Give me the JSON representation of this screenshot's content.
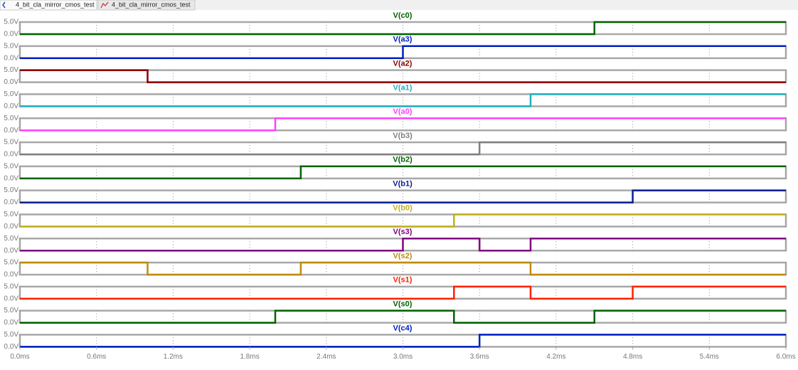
{
  "tabs": [
    "4_bit_cla_mirror_cmos_test",
    "4_bit_cla_mirror_cmos_test"
  ],
  "chart_data": [
    {
      "type": "line",
      "title": "V(c0)",
      "color": "#006400",
      "x": [
        0,
        4.5,
        4.5,
        6
      ],
      "values": [
        0,
        0,
        5,
        5
      ],
      "xlim": [
        0,
        6
      ],
      "ylim": [
        0,
        5
      ],
      "yticks": [
        {
          "value": 5,
          "label": "5.0V"
        },
        {
          "value": 0,
          "label": "0.0V"
        }
      ]
    },
    {
      "type": "line",
      "title": "V(a3)",
      "color": "#0020c0",
      "x": [
        0,
        3,
        3,
        6
      ],
      "values": [
        0,
        0,
        5,
        5
      ],
      "xlim": [
        0,
        6
      ],
      "ylim": [
        0,
        5
      ],
      "yticks": [
        {
          "value": 5,
          "label": "5.0V"
        },
        {
          "value": 0,
          "label": "0.0V"
        }
      ]
    },
    {
      "type": "line",
      "title": "V(a2)",
      "color": "#8b0000",
      "x": [
        0,
        1,
        1,
        6
      ],
      "values": [
        5,
        5,
        0,
        0
      ],
      "xlim": [
        0,
        6
      ],
      "ylim": [
        0,
        5
      ],
      "yticks": [
        {
          "value": 5,
          "label": "5.0V"
        },
        {
          "value": 0,
          "label": "0.0V"
        }
      ]
    },
    {
      "type": "line",
      "title": "V(a1)",
      "color": "#20b0c0",
      "x": [
        0,
        4,
        4,
        6
      ],
      "values": [
        0,
        0,
        5,
        5
      ],
      "xlim": [
        0,
        6
      ],
      "ylim": [
        0,
        5
      ],
      "yticks": [
        {
          "value": 5,
          "label": "5.0V"
        },
        {
          "value": 0,
          "label": "0.0V"
        }
      ]
    },
    {
      "type": "line",
      "title": "V(a0)",
      "color": "#ff40ff",
      "x": [
        0,
        2,
        2,
        6
      ],
      "values": [
        0,
        0,
        5,
        5
      ],
      "xlim": [
        0,
        6
      ],
      "ylim": [
        0,
        5
      ],
      "yticks": [
        {
          "value": 5,
          "label": "5.0V"
        },
        {
          "value": 0,
          "label": "0.0V"
        }
      ]
    },
    {
      "type": "line",
      "title": "V(b3)",
      "color": "#808080",
      "x": [
        0,
        3.6,
        3.6,
        6
      ],
      "values": [
        0,
        0,
        5,
        5
      ],
      "xlim": [
        0,
        6
      ],
      "ylim": [
        0,
        5
      ],
      "yticks": [
        {
          "value": 5,
          "label": "5.0V"
        },
        {
          "value": 0,
          "label": "0.0V"
        }
      ]
    },
    {
      "type": "line",
      "title": "V(b2)",
      "color": "#006400",
      "x": [
        0,
        2.2,
        2.2,
        6
      ],
      "values": [
        0,
        0,
        5,
        5
      ],
      "xlim": [
        0,
        6
      ],
      "ylim": [
        0,
        5
      ],
      "yticks": [
        {
          "value": 5,
          "label": "5.0V"
        },
        {
          "value": 0,
          "label": "0.0V"
        }
      ]
    },
    {
      "type": "line",
      "title": "V(b1)",
      "color": "#0a1f8f",
      "x": [
        0,
        4.8,
        4.8,
        6
      ],
      "values": [
        0,
        0,
        5,
        5
      ],
      "xlim": [
        0,
        6
      ],
      "ylim": [
        0,
        5
      ],
      "yticks": [
        {
          "value": 5,
          "label": "5.0V"
        },
        {
          "value": 0,
          "label": "0.0V"
        }
      ]
    },
    {
      "type": "line",
      "title": "V(b0)",
      "color": "#c0b020",
      "x": [
        0,
        3.4,
        3.4,
        6
      ],
      "values": [
        0,
        0,
        5,
        5
      ],
      "xlim": [
        0,
        6
      ],
      "ylim": [
        0,
        5
      ],
      "yticks": [
        {
          "value": 5,
          "label": "5.0V"
        },
        {
          "value": 0,
          "label": "0.0V"
        }
      ]
    },
    {
      "type": "line",
      "title": "V(s3)",
      "color": "#800080",
      "x": [
        0,
        3,
        3,
        3.6,
        3.6,
        4,
        4,
        6
      ],
      "values": [
        0,
        0,
        5,
        5,
        0,
        0,
        5,
        5
      ],
      "xlim": [
        0,
        6
      ],
      "ylim": [
        0,
        5
      ],
      "yticks": [
        {
          "value": 5,
          "label": "5.0V"
        },
        {
          "value": 0,
          "label": "0.0V"
        }
      ]
    },
    {
      "type": "line",
      "title": "V(s2)",
      "color": "#c08a10",
      "x": [
        0,
        1,
        1,
        2.2,
        2.2,
        4,
        4,
        6
      ],
      "values": [
        5,
        5,
        0,
        0,
        5,
        5,
        0,
        0
      ],
      "xlim": [
        0,
        6
      ],
      "ylim": [
        0,
        5
      ],
      "yticks": [
        {
          "value": 5,
          "label": "5.0V"
        },
        {
          "value": 0,
          "label": "0.0V"
        }
      ]
    },
    {
      "type": "line",
      "title": "V(s1)",
      "color": "#ff2000",
      "x": [
        0,
        3.4,
        3.4,
        4,
        4,
        4.8,
        4.8,
        6
      ],
      "values": [
        0,
        0,
        5,
        5,
        0,
        0,
        5,
        5
      ],
      "xlim": [
        0,
        6
      ],
      "ylim": [
        0,
        5
      ],
      "yticks": [
        {
          "value": 5,
          "label": "5.0V"
        },
        {
          "value": 0,
          "label": "0.0V"
        }
      ]
    },
    {
      "type": "line",
      "title": "V(s0)",
      "color": "#006400",
      "x": [
        0,
        2,
        2,
        3.4,
        3.4,
        4.5,
        4.5,
        6
      ],
      "values": [
        0,
        0,
        5,
        5,
        0,
        0,
        5,
        5
      ],
      "xlim": [
        0,
        6
      ],
      "ylim": [
        0,
        5
      ],
      "yticks": [
        {
          "value": 5,
          "label": "5.0V"
        },
        {
          "value": 0,
          "label": "0.0V"
        }
      ]
    },
    {
      "type": "line",
      "title": "V(c4)",
      "color": "#0020c0",
      "x": [
        0,
        3.6,
        3.6,
        6
      ],
      "values": [
        0,
        0,
        5,
        5
      ],
      "xlim": [
        0,
        6
      ],
      "ylim": [
        0,
        5
      ],
      "yticks": [
        {
          "value": 5,
          "label": "5.0V"
        },
        {
          "value": 0,
          "label": "0.0V"
        }
      ],
      "xticks": [
        {
          "value": 0,
          "label": "0.0ms"
        },
        {
          "value": 0.6,
          "label": "0.6ms"
        },
        {
          "value": 1.2,
          "label": "1.2ms"
        },
        {
          "value": 1.8,
          "label": "1.8ms"
        },
        {
          "value": 2.4,
          "label": "2.4ms"
        },
        {
          "value": 3,
          "label": "3.0ms"
        },
        {
          "value": 3.6,
          "label": "3.6ms"
        },
        {
          "value": 4.2,
          "label": "4.2ms"
        },
        {
          "value": 4.8,
          "label": "4.8ms"
        },
        {
          "value": 5.4,
          "label": "5.4ms"
        },
        {
          "value": 6,
          "label": "6.0ms"
        }
      ]
    }
  ]
}
